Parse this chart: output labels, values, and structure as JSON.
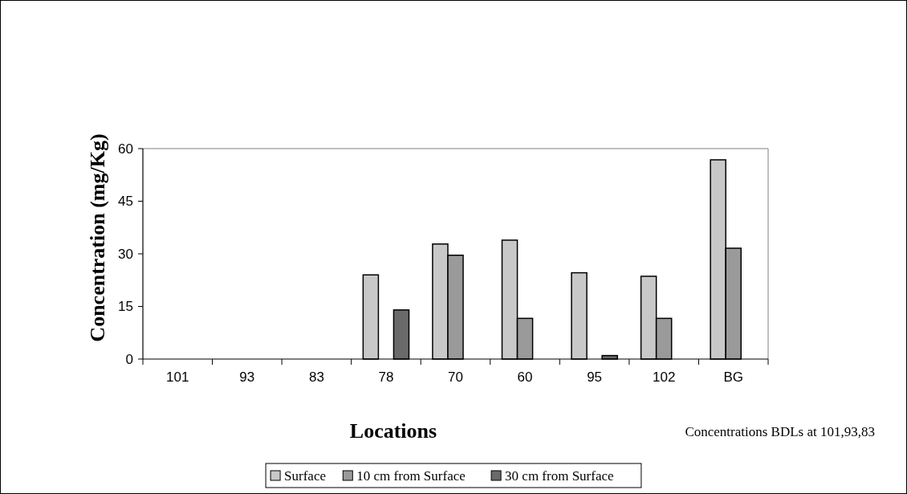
{
  "chart_data": {
    "type": "bar",
    "xlabel": "Locations",
    "ylabel": "Concentration (mg/Kg)",
    "categories": [
      "101",
      "93",
      "83",
      "78",
      "70",
      "60",
      "95",
      "102",
      "BG"
    ],
    "series": [
      {
        "name": "Surface",
        "color": "#c8c8c8",
        "values": [
          null,
          null,
          null,
          24,
          32.8,
          33.9,
          24.6,
          23.6,
          56.8
        ]
      },
      {
        "name": "10 cm from Surface",
        "color": "#9a9a9a",
        "values": [
          null,
          null,
          null,
          null,
          29.6,
          11.6,
          null,
          11.6,
          31.6
        ]
      },
      {
        "name": "30 cm from Surface",
        "color": "#6a6a6a",
        "values": [
          null,
          null,
          null,
          14,
          null,
          null,
          1,
          null,
          null
        ]
      }
    ],
    "ylim": [
      0,
      60
    ],
    "yticks": [
      0,
      15,
      30,
      45,
      60
    ],
    "grid": false,
    "legend": "bottom",
    "annotations": [
      "Concentrations BDLs at 101,93,83"
    ]
  }
}
